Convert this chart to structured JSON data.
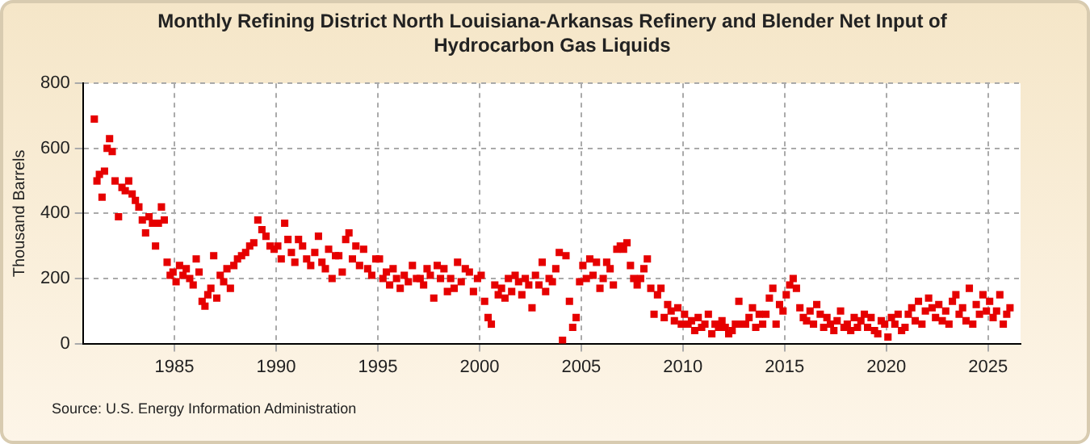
{
  "chart_data": {
    "type": "scatter",
    "title": "Monthly Refining District North Louisiana-Arkansas Refinery and Blender Net Input of Hydrocarbon Gas Liquids",
    "ylabel": "Thousand Barrels",
    "annotations": [
      "Source: U.S. Energy Information Administration"
    ],
    "xlim": [
      1980.5,
      2026.6
    ],
    "xticks": [
      1985,
      1990,
      1995,
      2000,
      2005,
      2010,
      2015,
      2020,
      2025
    ],
    "ylim": [
      0,
      800
    ],
    "yticks": [
      0,
      200,
      400,
      600,
      800
    ],
    "grid": true,
    "marker": "square",
    "legend": false,
    "series": [
      {
        "color": "#e60000",
        "x": [
          1981.06,
          1981.19,
          1981.31,
          1981.44,
          1981.56,
          1981.69,
          1981.81,
          1981.94,
          1982.08,
          1982.25,
          1982.42,
          1982.58,
          1982.75,
          1982.92,
          1983.08,
          1983.25,
          1983.42,
          1983.58,
          1983.75,
          1983.92,
          1984.07,
          1984.21,
          1984.36,
          1984.5,
          1984.64,
          1984.79,
          1984.93,
          1985.08,
          1985.25,
          1985.42,
          1985.58,
          1985.75,
          1985.92,
          1986.07,
          1986.21,
          1986.36,
          1986.5,
          1986.64,
          1986.79,
          1986.93,
          1987.08,
          1987.25,
          1987.42,
          1987.58,
          1987.75,
          1987.92,
          1988.1,
          1988.3,
          1988.5,
          1988.7,
          1988.9,
          1989.1,
          1989.3,
          1989.5,
          1989.7,
          1989.9,
          1990.08,
          1990.25,
          1990.42,
          1990.58,
          1990.75,
          1990.92,
          1991.1,
          1991.3,
          1991.5,
          1991.7,
          1991.9,
          1992.08,
          1992.25,
          1992.42,
          1992.58,
          1992.75,
          1992.92,
          1993.08,
          1993.25,
          1993.42,
          1993.58,
          1993.75,
          1993.92,
          1994.1,
          1994.3,
          1994.5,
          1994.7,
          1994.9,
          1995.08,
          1995.25,
          1995.42,
          1995.58,
          1995.75,
          1995.92,
          1996.1,
          1996.3,
          1996.5,
          1996.7,
          1996.9,
          1997.08,
          1997.25,
          1997.42,
          1997.58,
          1997.75,
          1997.92,
          1998.08,
          1998.25,
          1998.42,
          1998.58,
          1998.75,
          1998.92,
          1999.1,
          1999.3,
          1999.5,
          1999.7,
          1999.9,
          2000.08,
          2000.25,
          2000.42,
          2000.58,
          2000.75,
          2000.92,
          2001.08,
          2001.25,
          2001.42,
          2001.58,
          2001.75,
          2001.92,
          2002.08,
          2002.25,
          2002.42,
          2002.58,
          2002.75,
          2002.92,
          2003.08,
          2003.25,
          2003.42,
          2003.58,
          2003.75,
          2003.92,
          2004.08,
          2004.25,
          2004.42,
          2004.58,
          2004.75,
          2004.92,
          2005.08,
          2005.25,
          2005.42,
          2005.58,
          2005.75,
          2005.92,
          2006.08,
          2006.25,
          2006.42,
          2006.58,
          2006.75,
          2006.92,
          2007.08,
          2007.25,
          2007.42,
          2007.58,
          2007.75,
          2007.92,
          2008.08,
          2008.25,
          2008.42,
          2008.58,
          2008.75,
          2008.92,
          2009.08,
          2009.25,
          2009.42,
          2009.58,
          2009.75,
          2009.92,
          2010.08,
          2010.25,
          2010.42,
          2010.58,
          2010.75,
          2010.92,
          2011.08,
          2011.25,
          2011.42,
          2011.58,
          2011.75,
          2011.92,
          2012.08,
          2012.25,
          2012.42,
          2012.58,
          2012.75,
          2012.92,
          2013.08,
          2013.25,
          2013.42,
          2013.58,
          2013.75,
          2013.92,
          2014.08,
          2014.25,
          2014.42,
          2014.58,
          2014.75,
          2014.92,
          2015.08,
          2015.25,
          2015.42,
          2015.58,
          2015.75,
          2015.92,
          2016.08,
          2016.25,
          2016.42,
          2016.58,
          2016.75,
          2016.92,
          2017.08,
          2017.25,
          2017.42,
          2017.58,
          2017.75,
          2017.92,
          2018.08,
          2018.25,
          2018.42,
          2018.58,
          2018.75,
          2018.92,
          2019.08,
          2019.25,
          2019.42,
          2019.58,
          2019.75,
          2019.92,
          2020.08,
          2020.25,
          2020.42,
          2020.58,
          2020.75,
          2020.92,
          2021.08,
          2021.25,
          2021.42,
          2021.58,
          2021.75,
          2021.92,
          2022.08,
          2022.25,
          2022.42,
          2022.58,
          2022.75,
          2022.92,
          2023.08,
          2023.25,
          2023.42,
          2023.58,
          2023.75,
          2023.92,
          2024.08,
          2024.25,
          2024.42,
          2024.58,
          2024.75,
          2024.92,
          2025.08,
          2025.25,
          2025.42,
          2025.58,
          2025.75,
          2025.92,
          2026.08
        ],
        "values": [
          690,
          500,
          520,
          450,
          530,
          600,
          630,
          590,
          500,
          390,
          480,
          470,
          500,
          460,
          440,
          420,
          380,
          340,
          390,
          370,
          300,
          370,
          420,
          380,
          250,
          210,
          220,
          190,
          240,
          210,
          230,
          200,
          180,
          260,
          220,
          130,
          115,
          150,
          170,
          270,
          140,
          210,
          190,
          230,
          170,
          240,
          260,
          270,
          280,
          300,
          310,
          380,
          350,
          330,
          300,
          290,
          300,
          260,
          370,
          320,
          280,
          250,
          320,
          300,
          260,
          240,
          280,
          330,
          250,
          230,
          290,
          200,
          270,
          270,
          220,
          320,
          340,
          260,
          300,
          240,
          290,
          230,
          210,
          260,
          260,
          200,
          220,
          180,
          230,
          200,
          170,
          210,
          190,
          240,
          200,
          200,
          180,
          230,
          210,
          140,
          240,
          200,
          230,
          160,
          200,
          170,
          250,
          190,
          230,
          220,
          160,
          200,
          210,
          130,
          80,
          60,
          180,
          150,
          170,
          140,
          200,
          160,
          210,
          190,
          150,
          200,
          180,
          110,
          210,
          180,
          250,
          160,
          200,
          190,
          230,
          280,
          10,
          270,
          130,
          50,
          80,
          190,
          240,
          200,
          260,
          210,
          250,
          170,
          200,
          250,
          230,
          180,
          290,
          300,
          290,
          310,
          240,
          200,
          180,
          200,
          230,
          260,
          170,
          90,
          150,
          170,
          80,
          120,
          100,
          70,
          110,
          60,
          90,
          60,
          70,
          40,
          80,
          50,
          60,
          90,
          30,
          60,
          50,
          70,
          50,
          30,
          40,
          60,
          130,
          60,
          60,
          80,
          110,
          50,
          90,
          60,
          90,
          140,
          170,
          60,
          120,
          100,
          150,
          180,
          200,
          170,
          110,
          80,
          70,
          100,
          60,
          120,
          90,
          50,
          80,
          60,
          40,
          70,
          100,
          50,
          60,
          40,
          80,
          50,
          70,
          90,
          50,
          80,
          40,
          30,
          70,
          60,
          20,
          80,
          60,
          90,
          40,
          50,
          90,
          110,
          70,
          130,
          60,
          100,
          140,
          110,
          80,
          120,
          70,
          100,
          60,
          130,
          150,
          90,
          110,
          70,
          170,
          60,
          120,
          90,
          150,
          100,
          130,
          80,
          100,
          150,
          60,
          90,
          110
        ]
      }
    ]
  }
}
